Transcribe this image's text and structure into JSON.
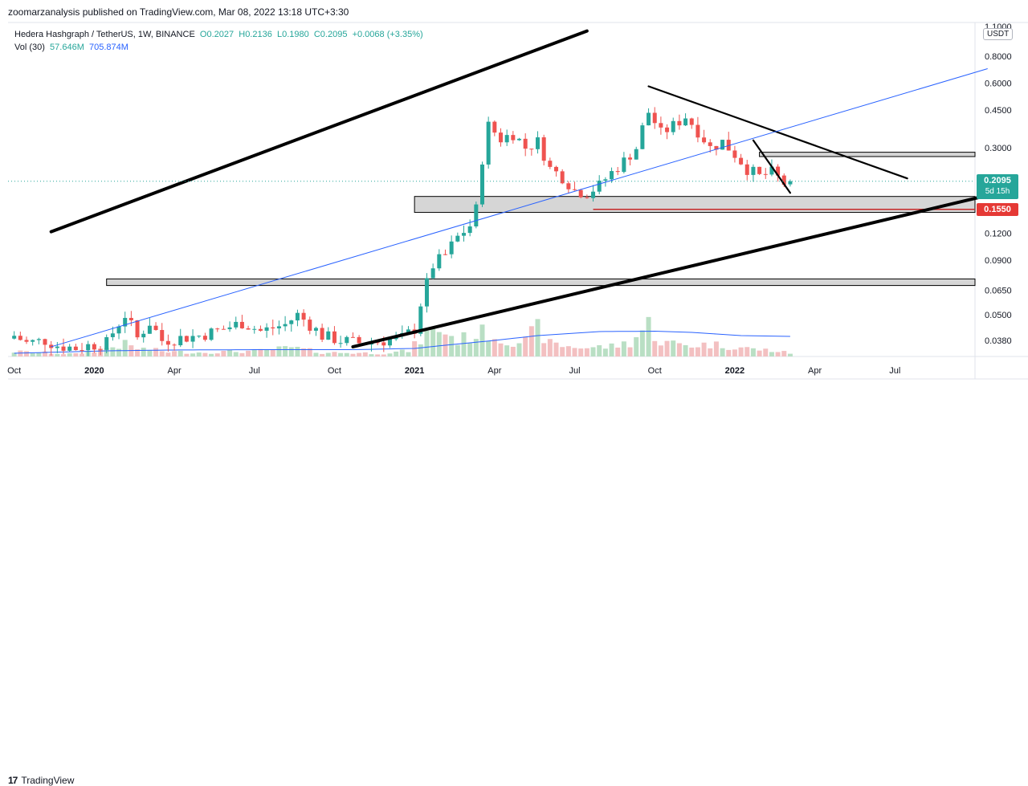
{
  "header": {
    "publisher": "zoomarzanalysis published on TradingView.com, Mar 08, 2022 13:18 UTC+3:30"
  },
  "legend": {
    "symbol": "Hedera Hashgraph / TetherUS, 1W, BINANCE",
    "open": "O0.2027",
    "high": "H0.2136",
    "low": "L0.1980",
    "close": "C0.2095",
    "change": "+0.0068 (+3.35%)",
    "vol_label": "Vol (30)",
    "vol_value": "57.646M",
    "vol_ma": "705.874M"
  },
  "axis": {
    "unit": "USDT",
    "current_price": "0.2095",
    "countdown": "5d 15h",
    "level_price": "0.1550"
  },
  "footer": {
    "brand": "TradingView"
  },
  "colors": {
    "up": "#26a69a",
    "down": "#ef5350",
    "volume_up": "#b9dfc4",
    "volume_down": "#f3c0c1",
    "ma": "#2962ff",
    "level": "#c62828",
    "zone_fill": "#cfcfcf",
    "trend": "#000000"
  },
  "chart_data": {
    "type": "candlestick",
    "title": "Hedera Hashgraph / TetherUS, 1W, BINANCE",
    "yscale": "log",
    "ylim": [
      0.032,
      1.15
    ],
    "y_ticks": [
      {
        "value": 1.1,
        "label": "1.1000"
      },
      {
        "value": 0.8,
        "label": "0.8000"
      },
      {
        "value": 0.6,
        "label": "0.6000"
      },
      {
        "value": 0.45,
        "label": "0.4500"
      },
      {
        "value": 0.3,
        "label": "0.3000"
      },
      {
        "value": 0.12,
        "label": "0.1200"
      },
      {
        "value": 0.09,
        "label": "0.0900"
      },
      {
        "value": 0.065,
        "label": "0.0650"
      },
      {
        "value": 0.05,
        "label": "0.0500"
      },
      {
        "value": 0.038,
        "label": "0.0380"
      }
    ],
    "x_ticks": [
      {
        "week": 0,
        "label": "Oct"
      },
      {
        "week": 13,
        "label": "2020"
      },
      {
        "week": 26,
        "label": "Apr"
      },
      {
        "week": 39,
        "label": "Jul"
      },
      {
        "week": 52,
        "label": "Oct"
      },
      {
        "week": 65,
        "label": "2021"
      },
      {
        "week": 78,
        "label": "Apr"
      },
      {
        "week": 91,
        "label": "Jul"
      },
      {
        "week": 104,
        "label": "Oct"
      },
      {
        "week": 117,
        "label": "2022"
      },
      {
        "week": 130,
        "label": "Apr"
      },
      {
        "week": 143,
        "label": "Jul"
      }
    ],
    "x_range": [
      -1,
      156
    ],
    "anchors": {
      "close": [
        [
          0,
          0.04
        ],
        [
          2,
          0.037
        ],
        [
          5,
          0.038
        ],
        [
          7,
          0.036
        ],
        [
          10,
          0.035
        ],
        [
          12,
          0.036
        ],
        [
          15,
          0.037
        ],
        [
          18,
          0.05
        ],
        [
          20,
          0.039
        ],
        [
          22,
          0.046
        ],
        [
          24,
          0.038
        ],
        [
          27,
          0.039
        ],
        [
          30,
          0.04
        ],
        [
          34,
          0.043
        ],
        [
          37,
          0.046
        ],
        [
          40,
          0.042
        ],
        [
          44,
          0.045
        ],
        [
          46,
          0.05
        ],
        [
          48,
          0.045
        ],
        [
          50,
          0.04
        ],
        [
          53,
          0.038
        ],
        [
          56,
          0.037
        ],
        [
          60,
          0.038
        ],
        [
          63,
          0.039
        ],
        [
          65,
          0.043
        ],
        [
          67,
          0.07
        ],
        [
          68,
          0.085
        ],
        [
          70,
          0.095
        ],
        [
          72,
          0.115
        ],
        [
          74,
          0.13
        ],
        [
          75,
          0.155
        ],
        [
          77,
          0.38
        ],
        [
          79,
          0.33
        ],
        [
          81,
          0.35
        ],
        [
          83,
          0.3
        ],
        [
          85,
          0.32
        ],
        [
          87,
          0.24
        ],
        [
          89,
          0.22
        ],
        [
          91,
          0.19
        ],
        [
          93,
          0.185
        ],
        [
          95,
          0.2
        ],
        [
          97,
          0.23
        ],
        [
          99,
          0.26
        ],
        [
          101,
          0.3
        ],
        [
          103,
          0.44
        ],
        [
          105,
          0.35
        ],
        [
          107,
          0.38
        ],
        [
          109,
          0.42
        ],
        [
          111,
          0.36
        ],
        [
          113,
          0.3
        ],
        [
          115,
          0.32
        ],
        [
          117,
          0.28
        ],
        [
          119,
          0.24
        ],
        [
          121,
          0.22
        ],
        [
          123,
          0.23
        ],
        [
          125,
          0.205
        ],
        [
          126,
          0.2095
        ]
      ],
      "volume": [
        [
          0,
          12
        ],
        [
          10,
          6
        ],
        [
          18,
          30
        ],
        [
          20,
          20
        ],
        [
          25,
          12
        ],
        [
          30,
          10
        ],
        [
          40,
          14
        ],
        [
          45,
          22
        ],
        [
          50,
          10
        ],
        [
          60,
          8
        ],
        [
          64,
          14
        ],
        [
          67,
          55
        ],
        [
          69,
          70
        ],
        [
          72,
          40
        ],
        [
          75,
          55
        ],
        [
          77,
          60
        ],
        [
          79,
          42
        ],
        [
          83,
          38
        ],
        [
          85,
          70
        ],
        [
          87,
          32
        ],
        [
          90,
          25
        ],
        [
          93,
          22
        ],
        [
          97,
          25
        ],
        [
          100,
          35
        ],
        [
          103,
          80
        ],
        [
          105,
          35
        ],
        [
          110,
          28
        ],
        [
          113,
          30
        ],
        [
          117,
          25
        ],
        [
          120,
          18
        ],
        [
          123,
          15
        ],
        [
          126,
          8
        ]
      ],
      "ma": [
        [
          0,
          8
        ],
        [
          15,
          14
        ],
        [
          25,
          16
        ],
        [
          40,
          17
        ],
        [
          55,
          17
        ],
        [
          65,
          20
        ],
        [
          70,
          28
        ],
        [
          78,
          40
        ],
        [
          85,
          52
        ],
        [
          95,
          62
        ],
        [
          104,
          63
        ],
        [
          110,
          60
        ],
        [
          118,
          52
        ],
        [
          126,
          50
        ]
      ]
    },
    "volume_scale_max": 220,
    "volume_ma_last": 705.874,
    "annotations": [
      {
        "kind": "zone",
        "w0": 65,
        "w1": 157,
        "p_low": 0.15,
        "p_high": 0.178
      },
      {
        "kind": "zone",
        "w0": 15,
        "w1": 157,
        "p_low": 0.0685,
        "p_high": 0.0735
      },
      {
        "kind": "zone",
        "w0": 121,
        "w1": 157,
        "p_low": 0.273,
        "p_high": 0.286
      },
      {
        "kind": "level",
        "w0": 94,
        "w1": 157,
        "p": 0.155
      },
      {
        "kind": "trend",
        "w0": 6,
        "p0": 0.122,
        "w1": 93,
        "p1": 1.05,
        "thick": true
      },
      {
        "kind": "trend",
        "w0": 55,
        "p0": 0.0355,
        "w1": 158,
        "p1": 0.18,
        "thick": true
      },
      {
        "kind": "trend",
        "w0": 103,
        "p0": 0.58,
        "w1": 145,
        "p1": 0.216,
        "thick": false
      },
      {
        "kind": "trend",
        "w0": 120,
        "p0": 0.325,
        "w1": 126,
        "p1": 0.185,
        "thick": false
      },
      {
        "kind": "thin",
        "w0": 6,
        "p0": 0.0355,
        "w1": 158,
        "p1": 0.7
      }
    ]
  }
}
